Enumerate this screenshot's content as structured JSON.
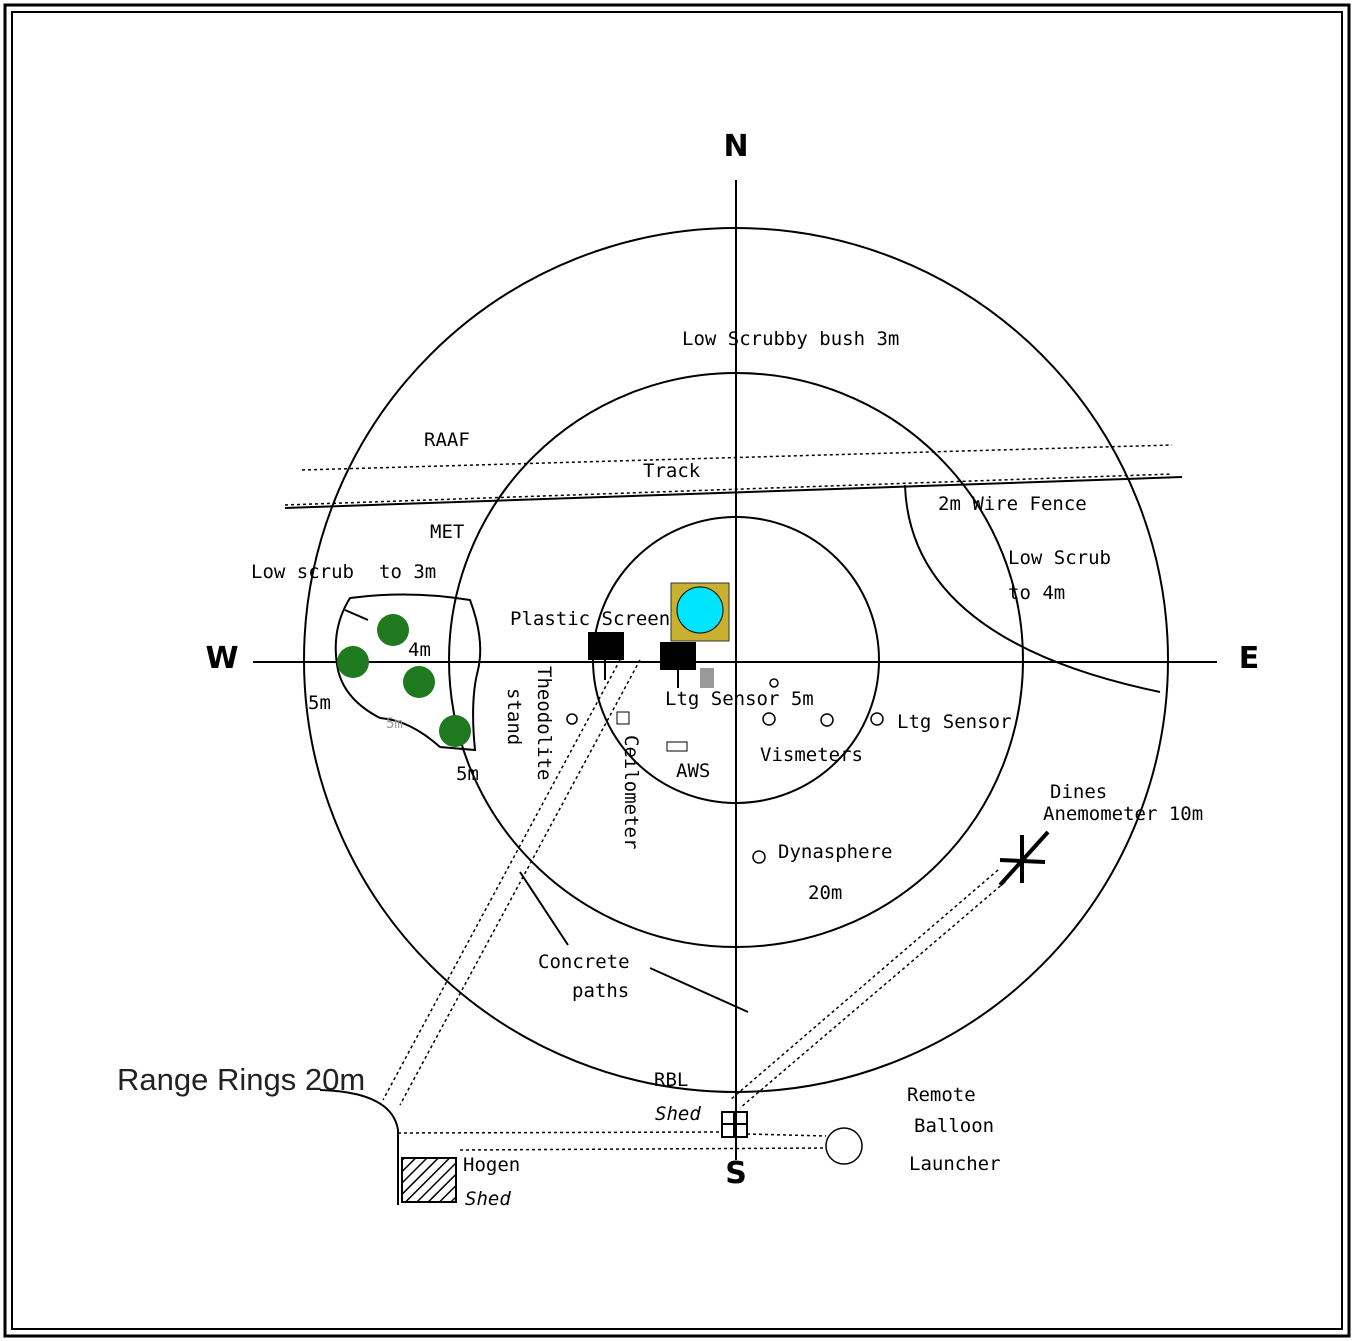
{
  "compass": {
    "north": "N",
    "south": "S",
    "east": "E",
    "west": "W"
  },
  "labels": {
    "low_scrubby_bush": "Low Scrubby bush 3m",
    "raaf": "RAAF",
    "track": "Track",
    "met": "MET",
    "wire_fence": "2m Wire Fence",
    "low_scrub_e_1": "Low Scrub",
    "low_scrub_e_2": "to 4m",
    "low_scrub_w_1": "Low scrub",
    "low_scrub_w_2": "to 3m",
    "tree_4m": "4m",
    "tree_5m_left": "5m",
    "tree_5m_grey": "5m",
    "tree_5m_bottom": "5m",
    "plastic_screen": "Plastic Screen",
    "theodolite_1": "Theodolite",
    "theodolite_2": "stand",
    "ceilometer": "Ceilometer",
    "ltg_sensor_5m": "Ltg Sensor 5m",
    "ltg_sensor": "Ltg Sensor",
    "aws": "AWS",
    "vismeters": "Vismeters",
    "dines_1": "Dines",
    "dines_2": "Anemometer 10m",
    "dynasphere": "Dynasphere",
    "ring_20m": "20m",
    "concrete_1": "Concrete",
    "concrete_2": "paths",
    "range_rings": "Range Rings 20m",
    "rbl": "RBL",
    "rbl_shed": "Shed",
    "remote_1": "Remote",
    "remote_2": "Balloon",
    "remote_3": "Launcher",
    "hogen_1": "Hogen",
    "hogen_2": "Shed"
  }
}
